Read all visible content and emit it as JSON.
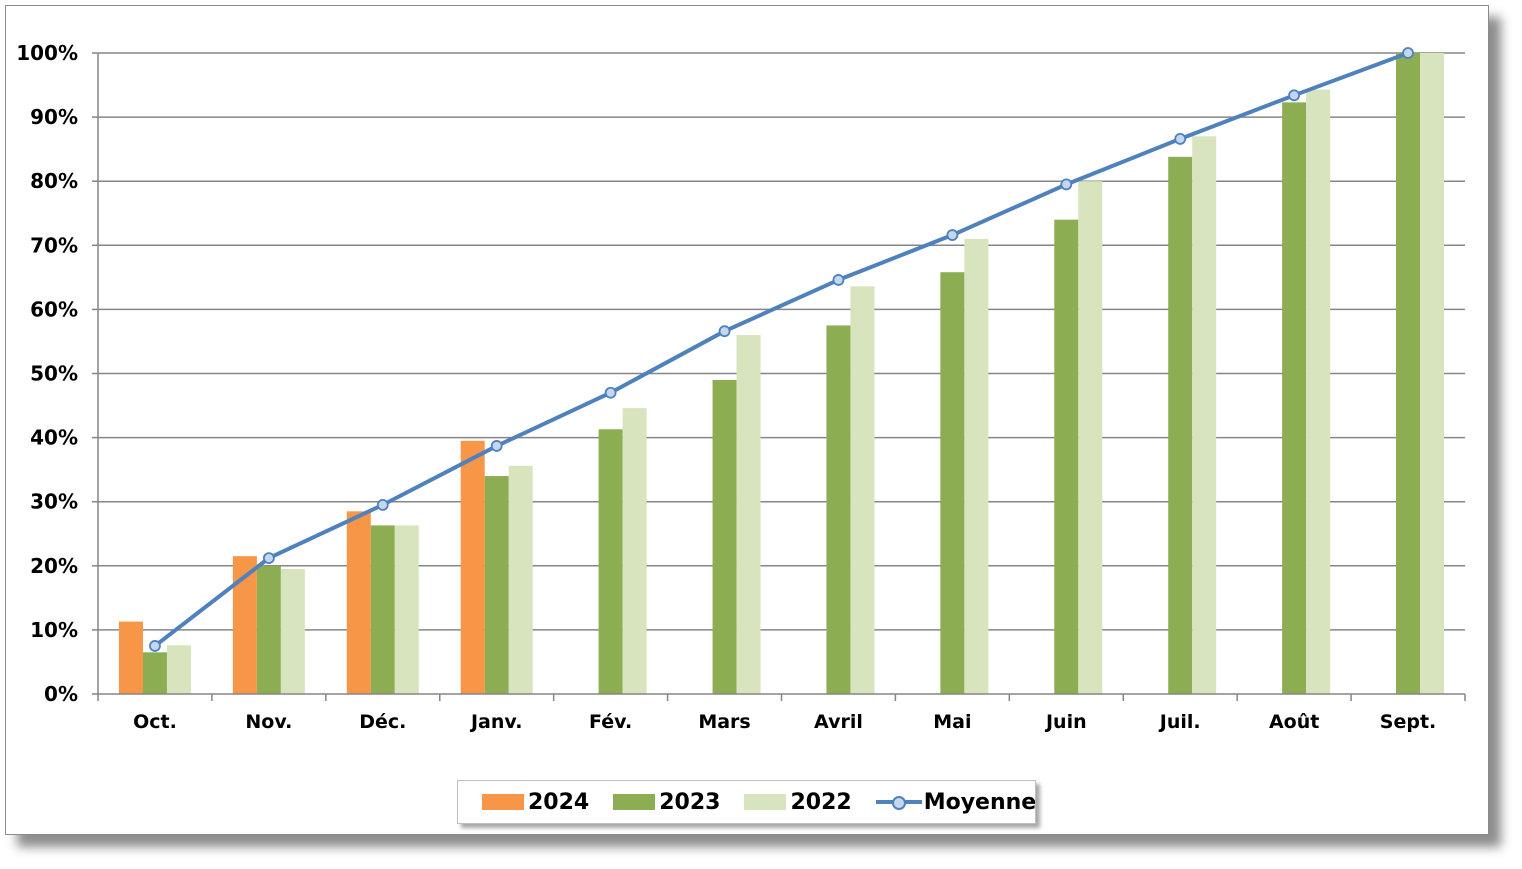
{
  "chart_data": {
    "type": "bar",
    "categories": [
      "Oct.",
      "Nov.",
      "Déc.",
      "Janv.",
      "Fév.",
      "Mars",
      "Avril",
      "Mai",
      "Juin",
      "Juil.",
      "Août",
      "Sept."
    ],
    "series": [
      {
        "name": "2024",
        "kind": "bar",
        "color": "#f79646",
        "values": [
          11.3,
          21.5,
          28.5,
          39.5,
          null,
          null,
          null,
          null,
          null,
          null,
          null,
          null
        ]
      },
      {
        "name": "2023",
        "kind": "bar",
        "color": "#8cad52",
        "values": [
          6.5,
          20.0,
          26.3,
          34.0,
          41.3,
          49.0,
          57.5,
          65.8,
          74.0,
          83.8,
          92.3,
          100
        ]
      },
      {
        "name": "2022",
        "kind": "bar",
        "color": "#d7e4bd",
        "values": [
          7.6,
          19.5,
          26.3,
          35.6,
          44.6,
          56.0,
          63.6,
          71.0,
          80.0,
          87.0,
          94.3,
          100
        ]
      },
      {
        "name": "Moyenne",
        "kind": "line",
        "color": "#4f81bd",
        "marker_fill": "#c5d7ee",
        "values": [
          7.5,
          21.2,
          29.5,
          38.7,
          47.0,
          56.6,
          64.6,
          71.6,
          79.5,
          86.6,
          93.4,
          100
        ]
      }
    ],
    "y_ticks": [
      "0%",
      "10%",
      "20%",
      "30%",
      "40%",
      "50%",
      "60%",
      "70%",
      "80%",
      "90%",
      "100%"
    ],
    "ylim": [
      0,
      100
    ],
    "grid": true,
    "legend_position": "bottom-center",
    "title": "",
    "xlabel": "",
    "ylabel": ""
  }
}
